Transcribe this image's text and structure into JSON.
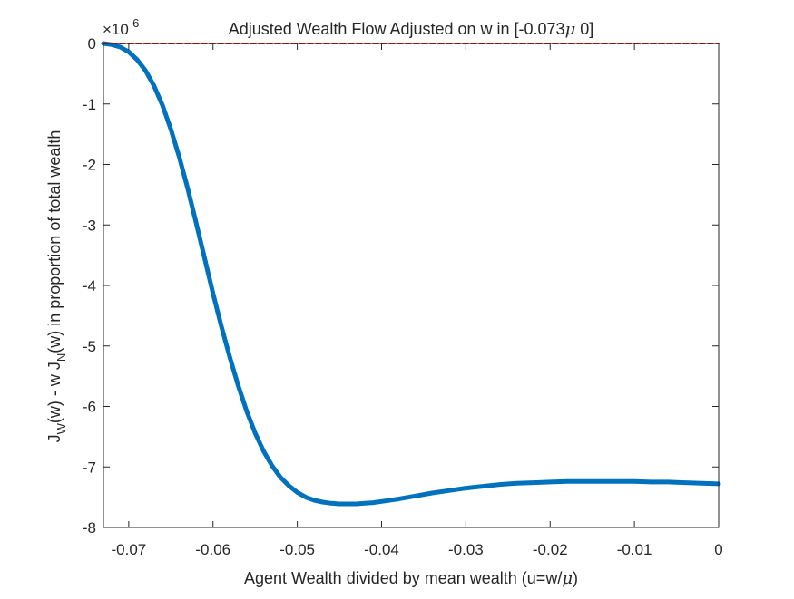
{
  "chart_data": {
    "type": "line",
    "title": {
      "before": "Adjusted Wealth Flow Adjusted on w in [-0.073",
      "mu": "μ",
      "after": " 0]"
    },
    "xlabel": {
      "before": "Agent Wealth divided by mean wealth (u=w/",
      "mu": "μ",
      "after": ")"
    },
    "ylabel": {
      "p1": "J",
      "s1": "W",
      "p2": "(w) - w J",
      "s2": "N",
      "p3": "(w) in proportion of total wealth"
    },
    "y_exponent": {
      "base": "×10",
      "power": "-6"
    },
    "xlim": [
      -0.073,
      0
    ],
    "ylim": [
      -8,
      0
    ],
    "x_ticks": [
      -0.07,
      -0.06,
      -0.05,
      -0.04,
      -0.03,
      -0.02,
      -0.01,
      0
    ],
    "x_tick_labels": [
      "-0.07",
      "-0.06",
      "-0.05",
      "-0.04",
      "-0.03",
      "-0.02",
      "-0.01",
      "0"
    ],
    "y_ticks": [
      0,
      -1,
      -2,
      -3,
      -4,
      -5,
      -6,
      -7,
      -8
    ],
    "y_tick_labels": [
      "0",
      "-1",
      "-2",
      "-3",
      "-4",
      "-5",
      "-6",
      "-7",
      "-8"
    ],
    "grid": false,
    "series": [
      {
        "color": "#0072BD",
        "style": "solid",
        "x": [
          -0.073,
          -0.072,
          -0.071,
          -0.07,
          -0.069,
          -0.068,
          -0.067,
          -0.066,
          -0.065,
          -0.064,
          -0.063,
          -0.062,
          -0.061,
          -0.06,
          -0.059,
          -0.058,
          -0.057,
          -0.056,
          -0.055,
          -0.054,
          -0.053,
          -0.052,
          -0.051,
          -0.05,
          -0.049,
          -0.048,
          -0.047,
          -0.046,
          -0.045,
          -0.044,
          -0.043,
          -0.042,
          -0.041,
          -0.04,
          -0.038,
          -0.036,
          -0.034,
          -0.032,
          -0.03,
          -0.028,
          -0.026,
          -0.024,
          -0.022,
          -0.02,
          -0.018,
          -0.016,
          -0.014,
          -0.012,
          -0.01,
          -0.008,
          -0.006,
          -0.004,
          -0.002,
          0.0
        ],
        "y": [
          0.0,
          -0.02,
          -0.06,
          -0.14,
          -0.27,
          -0.45,
          -0.7,
          -1.02,
          -1.42,
          -1.88,
          -2.4,
          -2.97,
          -3.55,
          -4.13,
          -4.68,
          -5.19,
          -5.66,
          -6.08,
          -6.44,
          -6.74,
          -6.98,
          -7.17,
          -7.31,
          -7.42,
          -7.5,
          -7.55,
          -7.58,
          -7.6,
          -7.61,
          -7.61,
          -7.61,
          -7.6,
          -7.59,
          -7.57,
          -7.53,
          -7.48,
          -7.43,
          -7.39,
          -7.35,
          -7.32,
          -7.29,
          -7.27,
          -7.26,
          -7.25,
          -7.24,
          -7.24,
          -7.24,
          -7.24,
          -7.24,
          -7.25,
          -7.25,
          -7.26,
          -7.27,
          -7.28
        ]
      },
      {
        "color": "#FF0000",
        "style": "dashed",
        "x": [
          -0.073,
          0.0
        ],
        "y": [
          0.0,
          0.0
        ]
      }
    ]
  }
}
